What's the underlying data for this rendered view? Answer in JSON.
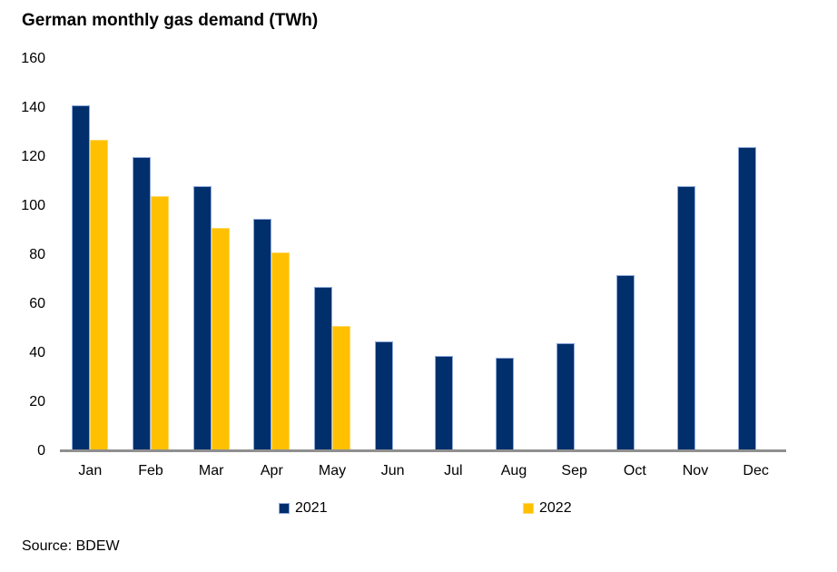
{
  "title": "German monthly gas demand (TWh)",
  "source": "Source: BDEW",
  "colors": {
    "series_2021": "#002F6C",
    "series_2021_edge": "#8EA9DB",
    "series_2022": "#FFC000",
    "series_2022_edge": "#FFD966",
    "axis_line": "#8F8F8F",
    "background": "#FFFFFF",
    "text": "#000000"
  },
  "chart_data": {
    "type": "bar",
    "title": "German monthly gas demand (TWh)",
    "categories": [
      "Jan",
      "Feb",
      "Mar",
      "Apr",
      "May",
      "Jun",
      "Jul",
      "Aug",
      "Sep",
      "Oct",
      "Nov",
      "Dec"
    ],
    "series": [
      {
        "name": "2021",
        "color": "#002F6C",
        "values": [
          141,
          120,
          108,
          95,
          67,
          45,
          39,
          38,
          44,
          72,
          108,
          124
        ]
      },
      {
        "name": "2022",
        "color": "#FFC000",
        "values": [
          127,
          104,
          91,
          81,
          51,
          null,
          null,
          null,
          null,
          null,
          null,
          null
        ]
      }
    ],
    "xlabel": "",
    "ylabel": "",
    "ylim": [
      0,
      160
    ],
    "yticks": [
      0,
      20,
      40,
      60,
      80,
      100,
      120,
      140,
      160
    ],
    "grid": false,
    "legend_position": "bottom"
  }
}
